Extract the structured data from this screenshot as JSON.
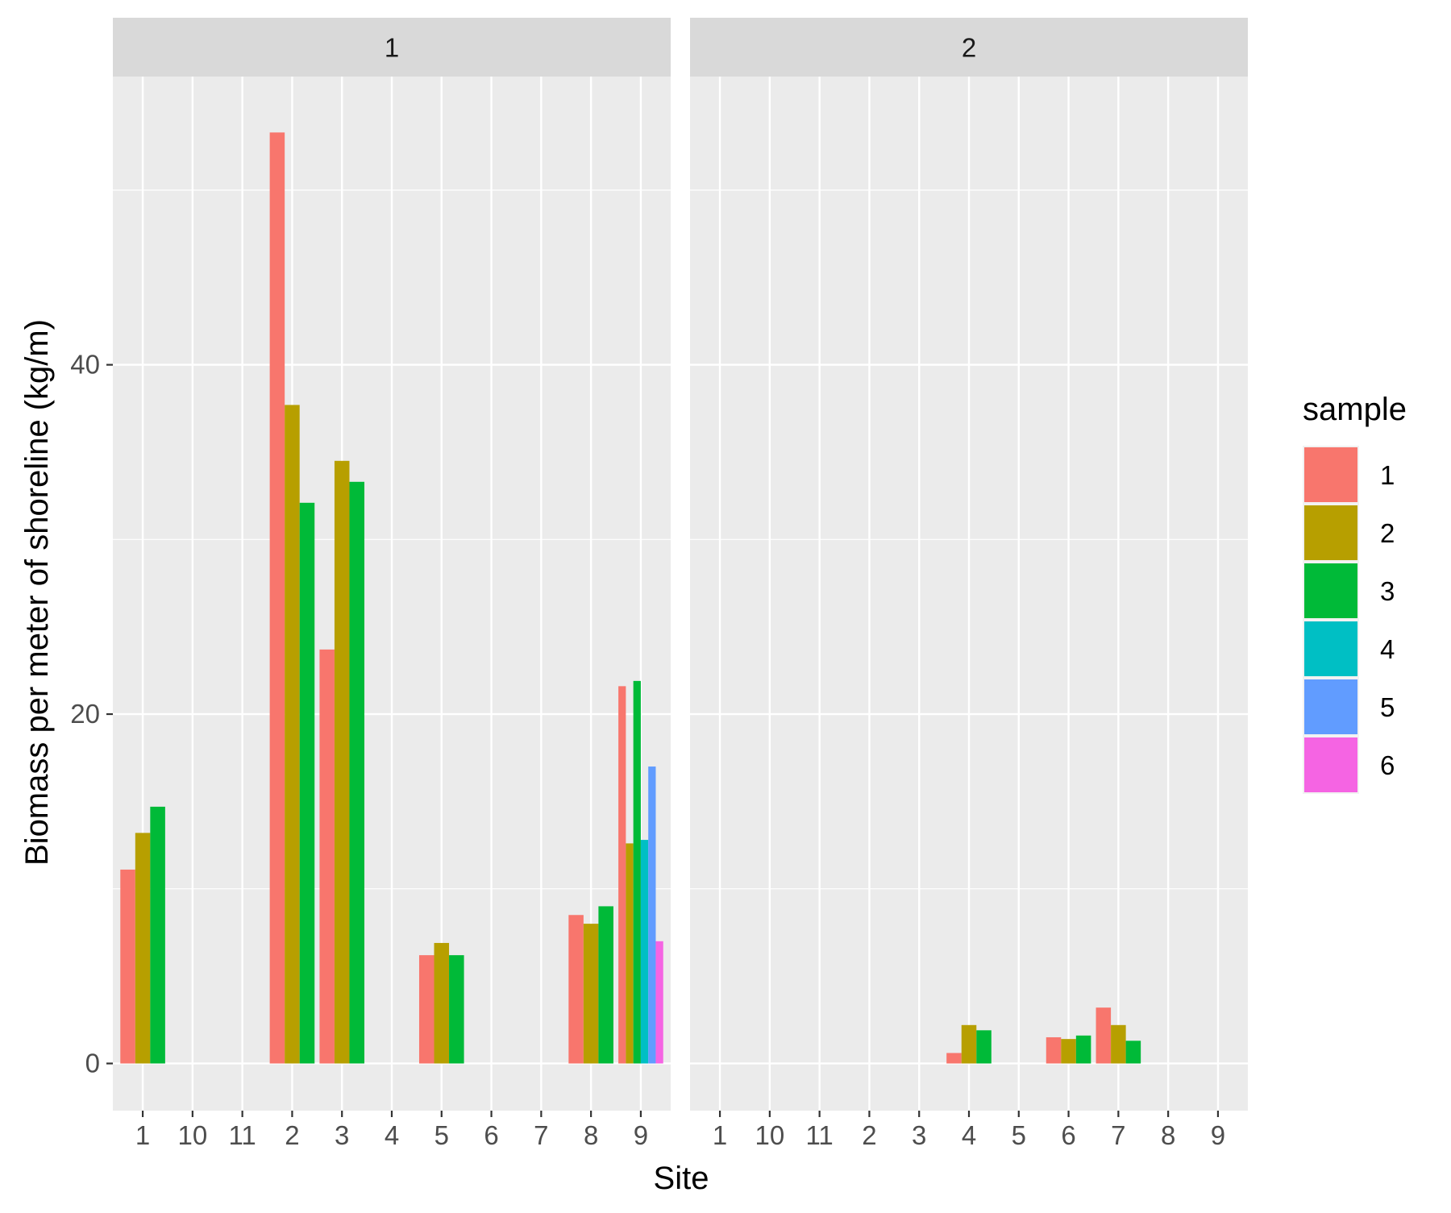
{
  "chart_data": {
    "type": "bar",
    "facet_labels": [
      "1",
      "2"
    ],
    "categories": [
      "1",
      "10",
      "11",
      "2",
      "3",
      "4",
      "5",
      "6",
      "7",
      "8",
      "9"
    ],
    "xlabel": "Site",
    "ylabel": "Biomass per meter of shoreline (kg/m)",
    "ylim": [
      -2.7,
      56.5
    ],
    "y_ticks": [
      0,
      20,
      40
    ],
    "grid": true,
    "legend": {
      "title": "sample",
      "position": "right",
      "entries": [
        "1",
        "2",
        "3",
        "4",
        "5",
        "6"
      ],
      "colors": [
        "#F8766D",
        "#B79F00",
        "#00BA38",
        "#00BFC4",
        "#619CFF",
        "#F564E3"
      ]
    },
    "panels": [
      {
        "facet": "1",
        "bars": [
          {
            "site": "1",
            "sample": "1",
            "value": 11.1
          },
          {
            "site": "1",
            "sample": "2",
            "value": 13.2
          },
          {
            "site": "1",
            "sample": "3",
            "value": 14.7
          },
          {
            "site": "2",
            "sample": "1",
            "value": 53.3
          },
          {
            "site": "2",
            "sample": "2",
            "value": 37.7
          },
          {
            "site": "2",
            "sample": "3",
            "value": 32.1
          },
          {
            "site": "3",
            "sample": "1",
            "value": 23.7
          },
          {
            "site": "3",
            "sample": "2",
            "value": 34.5
          },
          {
            "site": "3",
            "sample": "3",
            "value": 33.3
          },
          {
            "site": "5",
            "sample": "1",
            "value": 6.2
          },
          {
            "site": "5",
            "sample": "2",
            "value": 6.9
          },
          {
            "site": "5",
            "sample": "3",
            "value": 6.2
          },
          {
            "site": "8",
            "sample": "1",
            "value": 8.5
          },
          {
            "site": "8",
            "sample": "2",
            "value": 8.0
          },
          {
            "site": "8",
            "sample": "3",
            "value": 9.0
          },
          {
            "site": "9",
            "sample": "1",
            "value": 21.6
          },
          {
            "site": "9",
            "sample": "2",
            "value": 12.6
          },
          {
            "site": "9",
            "sample": "3",
            "value": 21.9
          },
          {
            "site": "9",
            "sample": "4",
            "value": 12.8
          },
          {
            "site": "9",
            "sample": "5",
            "value": 17.0
          },
          {
            "site": "9",
            "sample": "6",
            "value": 7.0
          }
        ]
      },
      {
        "facet": "2",
        "bars": [
          {
            "site": "4",
            "sample": "1",
            "value": 0.6
          },
          {
            "site": "4",
            "sample": "2",
            "value": 2.2
          },
          {
            "site": "4",
            "sample": "3",
            "value": 1.9
          },
          {
            "site": "6",
            "sample": "1",
            "value": 1.5
          },
          {
            "site": "6",
            "sample": "2",
            "value": 1.4
          },
          {
            "site": "6",
            "sample": "3",
            "value": 1.6
          },
          {
            "site": "7",
            "sample": "1",
            "value": 3.2
          },
          {
            "site": "7",
            "sample": "2",
            "value": 2.2
          },
          {
            "site": "7",
            "sample": "3",
            "value": 1.3
          }
        ]
      }
    ]
  }
}
